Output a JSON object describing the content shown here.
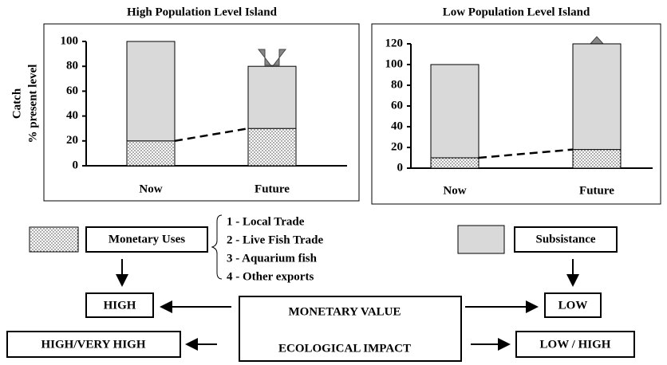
{
  "chart_data": [
    {
      "type": "bar",
      "stacked": true,
      "title": "High Population Level Island",
      "y_label": [
        "Catch",
        "% present level"
      ],
      "categories": [
        "Now",
        "Future"
      ],
      "series": [
        {
          "name": "Monetary Uses",
          "fill": "dots",
          "color": "#ffffff",
          "values": [
            20,
            30
          ]
        },
        {
          "name": "Subsistance",
          "color": "#d9d9d9",
          "values": [
            80,
            50
          ]
        }
      ],
      "ylim": [
        0,
        100
      ],
      "yticks": [
        0,
        20,
        40,
        60,
        80,
        100
      ],
      "grid": false
    },
    {
      "type": "bar",
      "stacked": true,
      "title": "Low Population Level Island",
      "categories": [
        "Now",
        "Future"
      ],
      "series": [
        {
          "name": "Monetary Uses",
          "fill": "dots",
          "color": "#ffffff",
          "values": [
            10,
            18
          ]
        },
        {
          "name": "Subsistance",
          "color": "#d9d9d9",
          "values": [
            90,
            102
          ]
        }
      ],
      "ylim": [
        0,
        120
      ],
      "yticks": [
        0,
        20,
        40,
        60,
        80,
        100,
        120
      ],
      "grid": false
    }
  ],
  "diagram": {
    "uses": [
      "1 - Local Trade",
      "2 - Live Fish Trade",
      "3 - Aquarium fish",
      "4 - Other exports"
    ],
    "center": [
      "MONETARY VALUE",
      "ECOLOGICAL IMPACT"
    ],
    "left": [
      "HIGH",
      "HIGH/VERY HIGH"
    ],
    "right": [
      "LOW",
      "LOW / HIGH"
    ]
  }
}
